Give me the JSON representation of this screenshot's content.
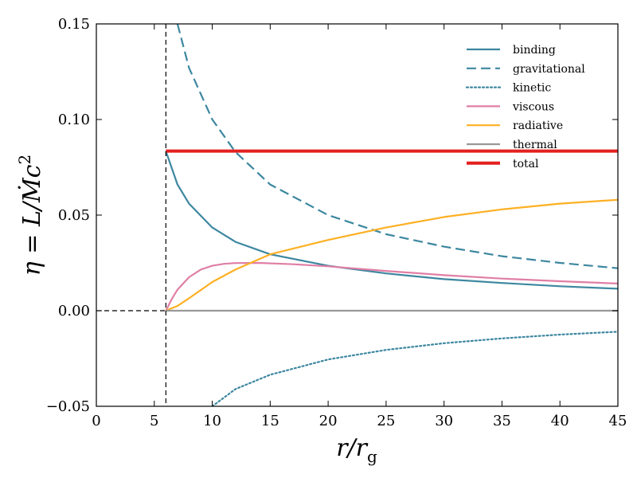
{
  "chart_data": {
    "type": "line",
    "xlabel": "r/r_g",
    "ylabel": "η = L/Ṁc²",
    "xlim": [
      0,
      45
    ],
    "ylim": [
      -0.05,
      0.15
    ],
    "xticks": [
      0,
      5,
      10,
      15,
      20,
      25,
      30,
      35,
      40,
      45
    ],
    "yticks": [
      -0.05,
      0.0,
      0.05,
      0.1,
      0.15
    ],
    "xtick_labels": [
      "0",
      "5",
      "10",
      "15",
      "20",
      "25",
      "30",
      "35",
      "40",
      "45"
    ],
    "ytick_labels": [
      "−0.05",
      "0.00",
      "0.05",
      "0.10",
      "0.15"
    ],
    "isco_marker": 6,
    "legend_position": "top-right",
    "series": [
      {
        "name": "binding",
        "color": "#3d87a0",
        "style": "solid",
        "x": [
          6,
          7,
          8,
          10,
          12,
          15,
          20,
          25,
          30,
          35,
          40,
          45
        ],
        "y": [
          0.0835,
          0.066,
          0.056,
          0.0435,
          0.036,
          0.0295,
          0.0235,
          0.0195,
          0.0165,
          0.0145,
          0.0128,
          0.0115
        ]
      },
      {
        "name": "gravitational",
        "color": "#3d87a0",
        "style": "dashed",
        "x": [
          7,
          8,
          10,
          12,
          15,
          20,
          25,
          30,
          35,
          40,
          45
        ],
        "y": [
          0.15,
          0.127,
          0.1,
          0.083,
          0.066,
          0.05,
          0.04,
          0.0335,
          0.0285,
          0.025,
          0.0222
        ]
      },
      {
        "name": "kinetic",
        "color": "#3d87a0",
        "style": "dotted",
        "x": [
          10,
          12,
          15,
          20,
          25,
          30,
          35,
          40,
          45
        ],
        "y": [
          -0.05,
          -0.041,
          -0.0335,
          -0.0255,
          -0.0205,
          -0.017,
          -0.0145,
          -0.0125,
          -0.011
        ]
      },
      {
        "name": "viscous",
        "color": "#e07fa5",
        "style": "solid",
        "x": [
          6,
          6.5,
          7,
          8,
          9,
          10,
          11,
          12,
          14,
          17,
          20,
          25,
          30,
          35,
          40,
          45
        ],
        "y": [
          0.0,
          0.006,
          0.011,
          0.0175,
          0.0215,
          0.0235,
          0.0245,
          0.0249,
          0.025,
          0.0243,
          0.0232,
          0.0208,
          0.0186,
          0.0168,
          0.0154,
          0.0142
        ]
      },
      {
        "name": "radiative",
        "color": "#fdb023",
        "style": "solid",
        "x": [
          6,
          7,
          8,
          10,
          12,
          15,
          20,
          25,
          30,
          35,
          40,
          45
        ],
        "y": [
          0.0,
          0.0025,
          0.0065,
          0.015,
          0.0215,
          0.0295,
          0.037,
          0.0435,
          0.049,
          0.053,
          0.056,
          0.058
        ]
      },
      {
        "name": "thermal",
        "color": "#999999",
        "style": "solid",
        "x": [
          6,
          45
        ],
        "y": [
          0.0,
          0.0
        ]
      },
      {
        "name": "total",
        "color": "#e3201f",
        "style": "solid",
        "x": [
          6,
          45
        ],
        "y": [
          0.0835,
          0.0835
        ]
      }
    ]
  }
}
